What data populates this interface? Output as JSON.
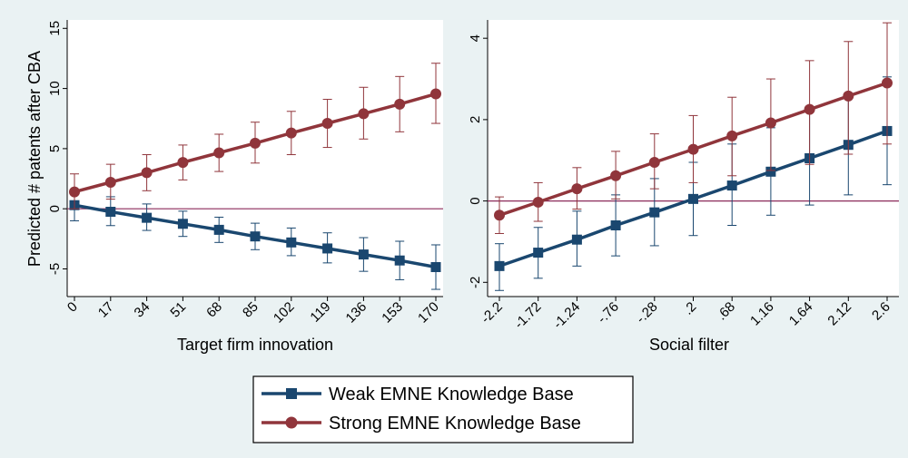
{
  "colors": {
    "background": "#eaf2f3",
    "plot_bg": "#ffffff",
    "weak": "#1a476f",
    "strong": "#90353b",
    "zero_line": "#8c2a5a"
  },
  "legend": {
    "items": [
      {
        "label": "Weak EMNE Knowledge Base",
        "color": "#1a476f",
        "marker": "square"
      },
      {
        "label": "Strong EMNE Knowledge Base",
        "color": "#90353b",
        "marker": "circle"
      }
    ]
  },
  "chart_data": [
    {
      "type": "line",
      "title": "",
      "xlabel": "Target firm innovation",
      "ylabel": "Predicted # patents after CBA",
      "x": [
        0,
        17,
        34,
        51,
        68,
        85,
        102,
        119,
        136,
        153,
        170
      ],
      "x_tick_labels": [
        "0",
        "17",
        "34",
        "51",
        "68",
        "85",
        "102",
        "119",
        "136",
        "153",
        "170"
      ],
      "y_ticks": [
        -5,
        0,
        5,
        10,
        15
      ],
      "y_tick_labels": [
        "-5",
        "0",
        "5",
        "10",
        "15"
      ],
      "xlim": [
        0,
        170
      ],
      "ylim": [
        -7.3,
        15.7
      ],
      "reference_line_y": 0,
      "grid": false,
      "series": [
        {
          "name": "Weak EMNE Knowledge Base",
          "marker": "square",
          "values": [
            0.3,
            -0.25,
            -0.75,
            -1.25,
            -1.75,
            -2.3,
            -2.8,
            -3.3,
            -3.8,
            -4.3,
            -4.85
          ],
          "ci_low": [
            -1.0,
            -1.4,
            -1.8,
            -2.3,
            -2.8,
            -3.4,
            -3.9,
            -4.5,
            -5.2,
            -5.9,
            -6.7
          ],
          "ci_high": [
            1.5,
            1.0,
            0.4,
            -0.2,
            -0.7,
            -1.2,
            -1.6,
            -2.0,
            -2.4,
            -2.7,
            -3.0
          ]
        },
        {
          "name": "Strong EMNE Knowledge Base",
          "marker": "circle",
          "values": [
            1.4,
            2.2,
            3.0,
            3.85,
            4.65,
            5.45,
            6.3,
            7.1,
            7.9,
            8.7,
            9.55
          ],
          "ci_low": [
            0.0,
            0.8,
            1.5,
            2.4,
            3.1,
            3.8,
            4.5,
            5.1,
            5.8,
            6.4,
            7.1
          ],
          "ci_high": [
            2.9,
            3.7,
            4.5,
            5.3,
            6.2,
            7.2,
            8.1,
            9.1,
            10.1,
            11.0,
            12.1
          ]
        }
      ]
    },
    {
      "type": "line",
      "title": "",
      "xlabel": "Social filter",
      "ylabel": "",
      "x": [
        -2.2,
        -1.72,
        -1.24,
        -0.76,
        -0.28,
        0.2,
        0.68,
        1.16,
        1.64,
        2.12,
        2.6
      ],
      "x_tick_labels": [
        "-2.2",
        "-1.72",
        "-1.24",
        "-.76",
        "-.28",
        ".2",
        ".68",
        "1.16",
        "1.64",
        "2.12",
        "2.6"
      ],
      "y_ticks": [
        -2,
        0,
        2,
        4
      ],
      "y_tick_labels": [
        "-2",
        "0",
        "2",
        "4"
      ],
      "xlim": [
        -2.2,
        2.6
      ],
      "ylim": [
        -2.35,
        4.45
      ],
      "reference_line_y": 0,
      "grid": false,
      "series": [
        {
          "name": "Weak EMNE Knowledge Base",
          "marker": "square",
          "values": [
            -1.6,
            -1.27,
            -0.95,
            -0.6,
            -0.28,
            0.05,
            0.38,
            0.72,
            1.05,
            1.38,
            1.72
          ],
          "ci_low": [
            -2.2,
            -1.9,
            -1.6,
            -1.35,
            -1.1,
            -0.85,
            -0.6,
            -0.35,
            -0.1,
            0.15,
            0.4
          ],
          "ci_high": [
            -1.05,
            -0.65,
            -0.25,
            0.15,
            0.55,
            0.95,
            1.4,
            1.8,
            2.2,
            2.6,
            3.05
          ]
        },
        {
          "name": "Strong EMNE Knowledge Base",
          "marker": "circle",
          "values": [
            -0.35,
            -0.03,
            0.3,
            0.62,
            0.95,
            1.27,
            1.6,
            1.92,
            2.25,
            2.58,
            2.9
          ],
          "ci_low": [
            -0.8,
            -0.5,
            -0.2,
            0.05,
            0.3,
            0.45,
            0.62,
            0.75,
            0.9,
            1.15,
            1.4
          ],
          "ci_high": [
            0.1,
            0.45,
            0.82,
            1.22,
            1.65,
            2.1,
            2.55,
            3.0,
            3.45,
            3.92,
            4.38
          ]
        }
      ]
    }
  ]
}
